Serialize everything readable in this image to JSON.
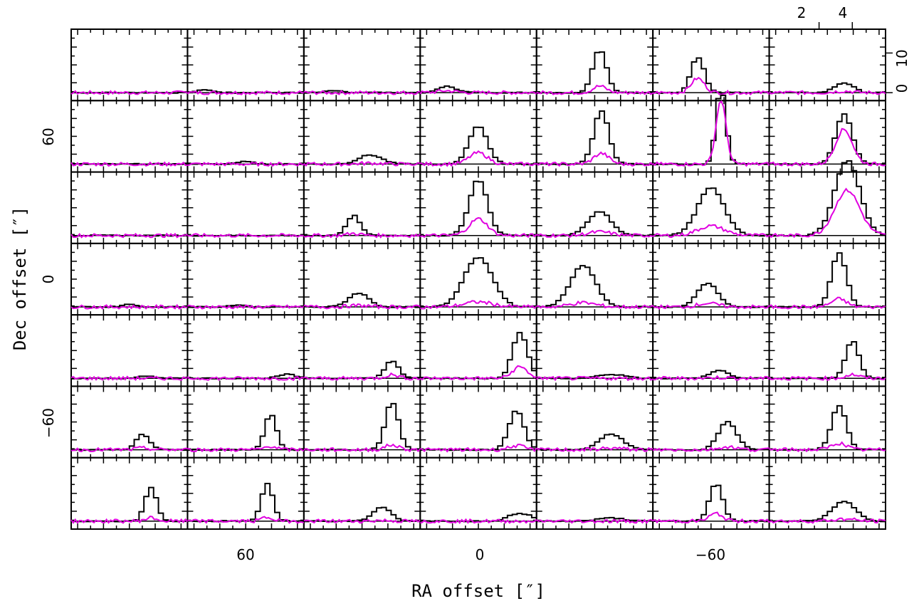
{
  "chart_data": {
    "type": "line",
    "layout": "spectral map grid",
    "rows": 7,
    "cols": 7,
    "xlabel": "RA offset [″]",
    "ylabel": "Dec offset [″]",
    "x_ticks": [
      "60",
      "0",
      "−60"
    ],
    "y_ticks": [
      "60",
      "0",
      "−60"
    ],
    "inset_x_ticks": [
      "2",
      "4"
    ],
    "inset_y_ticks": [
      "0",
      "10"
    ],
    "inset_xlim": [
      -1,
      6
    ],
    "inset_ylim": [
      -2,
      16
    ],
    "series_colors": {
      "primary": "#000000",
      "secondary": "#e000e0"
    },
    "spectra": [
      [
        {
          "peak": 0,
          "center": 0,
          "width": 0.45,
          "ratio": 0
        },
        {
          "peak": 0.8,
          "center": 0.0,
          "width": 0.45,
          "ratio": 0
        },
        {
          "peak": 0.5,
          "center": 0.8,
          "width": 0.45,
          "ratio": 0
        },
        {
          "peak": 1.6,
          "center": 0.6,
          "width": 0.55,
          "ratio": 0.3
        },
        {
          "peak": 11,
          "center": 2.8,
          "width": 0.4,
          "ratio": 0.15
        },
        {
          "peak": 9,
          "center": 1.7,
          "width": 0.4,
          "ratio": 0.4
        },
        {
          "peak": 2.5,
          "center": 3.5,
          "width": 0.55,
          "ratio": 0.15
        }
      ],
      [
        {
          "peak": 0,
          "center": 0,
          "width": 0.45,
          "ratio": 0
        },
        {
          "peak": 0.6,
          "center": 2.5,
          "width": 0.45,
          "ratio": 0
        },
        {
          "peak": 2.3,
          "center": 3.0,
          "width": 0.7,
          "ratio": 0.1
        },
        {
          "peak": 9.5,
          "center": 2.5,
          "width": 0.55,
          "ratio": 0.3
        },
        {
          "peak": 13.5,
          "center": 2.9,
          "width": 0.45,
          "ratio": 0.2
        },
        {
          "peak": 19,
          "center": 3.1,
          "width": 0.3,
          "ratio": 0.85
        },
        {
          "peak": 12.5,
          "center": 3.5,
          "width": 0.5,
          "ratio": 0.7
        }
      ],
      [
        {
          "peak": 0,
          "center": 0,
          "width": 0.45,
          "ratio": 0
        },
        {
          "peak": 0,
          "center": 0,
          "width": 0.45,
          "ratio": 0
        },
        {
          "peak": 5,
          "center": 2.0,
          "width": 0.4,
          "ratio": 0.1
        },
        {
          "peak": 14,
          "center": 2.5,
          "width": 0.55,
          "ratio": 0.3
        },
        {
          "peak": 6,
          "center": 2.8,
          "width": 0.7,
          "ratio": 0.15
        },
        {
          "peak": 12,
          "center": 2.5,
          "width": 0.8,
          "ratio": 0.2
        },
        {
          "peak": 19,
          "center": 3.7,
          "width": 0.75,
          "ratio": 0.6
        }
      ],
      [
        {
          "peak": 0.6,
          "center": 2.5,
          "width": 0.45,
          "ratio": 0
        },
        {
          "peak": 0.5,
          "center": 2.0,
          "width": 0.45,
          "ratio": 0
        },
        {
          "peak": 3.5,
          "center": 2.3,
          "width": 0.6,
          "ratio": 0.1
        },
        {
          "peak": 12.5,
          "center": 2.5,
          "width": 0.85,
          "ratio": 0.1
        },
        {
          "peak": 10.5,
          "center": 1.8,
          "width": 0.75,
          "ratio": 0.1
        },
        {
          "peak": 6,
          "center": 2.3,
          "width": 0.6,
          "ratio": 0.15
        },
        {
          "peak": 13.5,
          "center": 3.2,
          "width": 0.45,
          "ratio": 0.15
        }
      ],
      [
        {
          "peak": 0.5,
          "center": 3.5,
          "width": 0.5,
          "ratio": 0
        },
        {
          "peak": 1.0,
          "center": 5.0,
          "width": 0.5,
          "ratio": 0
        },
        {
          "peak": 4.5,
          "center": 4.3,
          "width": 0.4,
          "ratio": 0.2
        },
        {
          "peak": 11.5,
          "center": 5.0,
          "width": 0.45,
          "ratio": 0.25
        },
        {
          "peak": 1.0,
          "center": 3.5,
          "width": 0.8,
          "ratio": 0
        },
        {
          "peak": 2.0,
          "center": 3.0,
          "width": 0.55,
          "ratio": 0.1
        },
        {
          "peak": 9.5,
          "center": 4.0,
          "width": 0.4,
          "ratio": 0.1
        }
      ],
      [
        {
          "peak": 4,
          "center": 3.3,
          "width": 0.4,
          "ratio": 0.1
        },
        {
          "peak": 9,
          "center": 4.0,
          "width": 0.35,
          "ratio": 0.1
        },
        {
          "peak": 12,
          "center": 4.3,
          "width": 0.4,
          "ratio": 0.1
        },
        {
          "peak": 10,
          "center": 4.8,
          "width": 0.45,
          "ratio": 0.1
        },
        {
          "peak": 4,
          "center": 3.5,
          "width": 0.7,
          "ratio": 0.1
        },
        {
          "peak": 7,
          "center": 3.5,
          "width": 0.55,
          "ratio": 0.1
        },
        {
          "peak": 11,
          "center": 3.2,
          "width": 0.45,
          "ratio": 0.15
        }
      ],
      [
        {
          "peak": 8.5,
          "center": 3.8,
          "width": 0.35,
          "ratio": 0.1
        },
        {
          "peak": 9.5,
          "center": 3.8,
          "width": 0.35,
          "ratio": 0.1
        },
        {
          "peak": 3.5,
          "center": 3.7,
          "width": 0.55,
          "ratio": 0.05
        },
        {
          "peak": 2.0,
          "center": 5.0,
          "width": 0.7,
          "ratio": 0
        },
        {
          "peak": 0.8,
          "center": 3.5,
          "width": 0.8,
          "ratio": 0
        },
        {
          "peak": 9.5,
          "center": 2.8,
          "width": 0.4,
          "ratio": 0.2
        },
        {
          "peak": 5,
          "center": 3.5,
          "width": 0.7,
          "ratio": 0.1
        }
      ]
    ]
  }
}
